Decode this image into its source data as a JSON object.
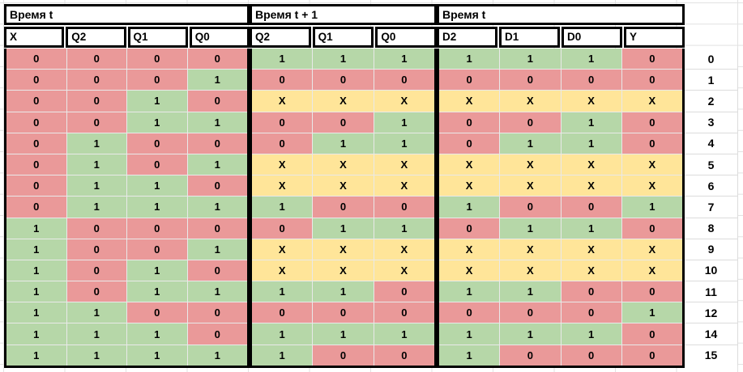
{
  "app": {
    "kind": "spreadsheet truth table",
    "language": "ru"
  },
  "colors": {
    "cell_fill": {
      "0": "#ea9999",
      "1": "#b6d7a8",
      "X": "#ffe599"
    },
    "border": "#000000",
    "gridline": "#e2e2e2",
    "background": "#ffffff",
    "text": "#000000"
  },
  "table": {
    "groups": [
      {
        "key": "t",
        "title": "Время t",
        "columns": [
          "X",
          "Q2",
          "Q1",
          "Q0"
        ]
      },
      {
        "key": "t1",
        "title": "Время t + 1",
        "columns": [
          "Q2",
          "Q1",
          "Q0"
        ]
      },
      {
        "key": "d",
        "title": "Время t",
        "columns": [
          "D2",
          "D1",
          "D0",
          "Y"
        ]
      }
    ],
    "rows": [
      {
        "label": "0",
        "t": [
          "0",
          "0",
          "0",
          "0"
        ],
        "t1": [
          "1",
          "1",
          "1"
        ],
        "d": [
          "1",
          "1",
          "1",
          "0"
        ]
      },
      {
        "label": "1",
        "t": [
          "0",
          "0",
          "0",
          "1"
        ],
        "t1": [
          "0",
          "0",
          "0"
        ],
        "d": [
          "0",
          "0",
          "0",
          "0"
        ]
      },
      {
        "label": "2",
        "t": [
          "0",
          "0",
          "1",
          "0"
        ],
        "t1": [
          "X",
          "X",
          "X"
        ],
        "d": [
          "X",
          "X",
          "X",
          "X"
        ]
      },
      {
        "label": "3",
        "t": [
          "0",
          "0",
          "1",
          "1"
        ],
        "t1": [
          "0",
          "0",
          "1"
        ],
        "d": [
          "0",
          "0",
          "1",
          "0"
        ]
      },
      {
        "label": "4",
        "t": [
          "0",
          "1",
          "0",
          "0"
        ],
        "t1": [
          "0",
          "1",
          "1"
        ],
        "d": [
          "0",
          "1",
          "1",
          "0"
        ]
      },
      {
        "label": "5",
        "t": [
          "0",
          "1",
          "0",
          "1"
        ],
        "t1": [
          "X",
          "X",
          "X"
        ],
        "d": [
          "X",
          "X",
          "X",
          "X"
        ]
      },
      {
        "label": "6",
        "t": [
          "0",
          "1",
          "1",
          "0"
        ],
        "t1": [
          "X",
          "X",
          "X"
        ],
        "d": [
          "X",
          "X",
          "X",
          "X"
        ]
      },
      {
        "label": "7",
        "t": [
          "0",
          "1",
          "1",
          "1"
        ],
        "t1": [
          "1",
          "0",
          "0"
        ],
        "d": [
          "1",
          "0",
          "0",
          "1"
        ]
      },
      {
        "label": "8",
        "t": [
          "1",
          "0",
          "0",
          "0"
        ],
        "t1": [
          "0",
          "1",
          "1"
        ],
        "d": [
          "0",
          "1",
          "1",
          "0"
        ]
      },
      {
        "label": "9",
        "t": [
          "1",
          "0",
          "0",
          "1"
        ],
        "t1": [
          "X",
          "X",
          "X"
        ],
        "d": [
          "X",
          "X",
          "X",
          "X"
        ]
      },
      {
        "label": "10",
        "t": [
          "1",
          "0",
          "1",
          "0"
        ],
        "t1": [
          "X",
          "X",
          "X"
        ],
        "d": [
          "X",
          "X",
          "X",
          "X"
        ]
      },
      {
        "label": "11",
        "t": [
          "1",
          "0",
          "1",
          "1"
        ],
        "t1": [
          "1",
          "1",
          "0"
        ],
        "d": [
          "1",
          "1",
          "0",
          "0"
        ]
      },
      {
        "label": "12",
        "t": [
          "1",
          "1",
          "0",
          "0"
        ],
        "t1": [
          "0",
          "0",
          "0"
        ],
        "d": [
          "0",
          "0",
          "0",
          "1"
        ]
      },
      {
        "label": "14",
        "t": [
          "1",
          "1",
          "1",
          "0"
        ],
        "t1": [
          "1",
          "1",
          "1"
        ],
        "d": [
          "1",
          "1",
          "1",
          "0"
        ]
      },
      {
        "label": "15",
        "t": [
          "1",
          "1",
          "1",
          "1"
        ],
        "t1": [
          "1",
          "0",
          "0"
        ],
        "d": [
          "1",
          "0",
          "0",
          "0"
        ]
      }
    ]
  }
}
